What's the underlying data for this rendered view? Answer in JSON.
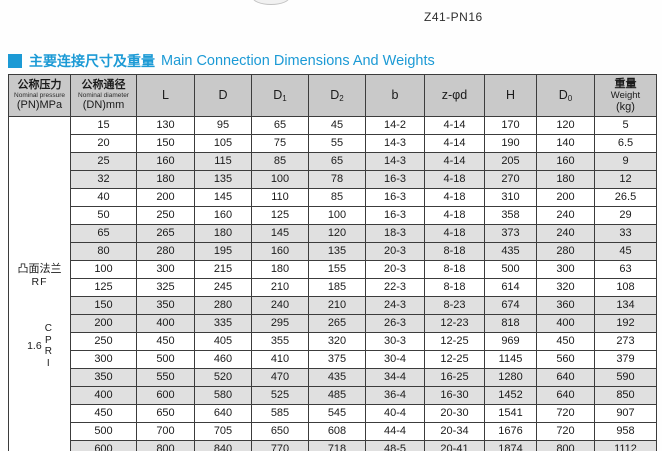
{
  "colors": {
    "accent": "#1c9ad5",
    "header_bg": "#c9c9c9",
    "stripe": "#e0e0e0",
    "border": "#3c3c3c"
  },
  "header": {
    "model": "Z41-PN16"
  },
  "section": {
    "title_zh": "主要连接尺寸及重量",
    "title_en": "Main Connection Dimensions And Weights"
  },
  "table": {
    "pressure_col": {
      "zh": "公称压力",
      "en": "Nominal pressure",
      "unit": "(PN)MPa"
    },
    "diameter_col": {
      "zh": "公称通径",
      "en": "Nominal diameter",
      "unit": "(DN)mm"
    },
    "dim_columns": [
      {
        "label": "L",
        "sub": ""
      },
      {
        "label": "D",
        "sub": ""
      },
      {
        "label": "D",
        "sub": "1"
      },
      {
        "label": "D",
        "sub": "2"
      },
      {
        "label": "b",
        "sub": ""
      },
      {
        "label": "z-φd",
        "sub": ""
      },
      {
        "label": "H",
        "sub": ""
      },
      {
        "label": "D",
        "sub": "0"
      }
    ],
    "weight_col": {
      "zh": "重量",
      "en": "Weight",
      "unit": "(kg)"
    },
    "pressure_cell": {
      "flange_zh": "凸面法兰",
      "flange_code": "RF",
      "pressure_value": "1.6",
      "vertical_letters": [
        "C",
        "P",
        "R",
        "I"
      ]
    },
    "rows": [
      {
        "dn": "15",
        "cells": [
          "130",
          "95",
          "65",
          "45",
          "14-2",
          "4-14",
          "170",
          "120",
          "5"
        ],
        "shaded": false
      },
      {
        "dn": "20",
        "cells": [
          "150",
          "105",
          "75",
          "55",
          "14-3",
          "4-14",
          "190",
          "140",
          "6.5"
        ],
        "shaded": false
      },
      {
        "dn": "25",
        "cells": [
          "160",
          "115",
          "85",
          "65",
          "14-3",
          "4-14",
          "205",
          "160",
          "9"
        ],
        "shaded": true
      },
      {
        "dn": "32",
        "cells": [
          "180",
          "135",
          "100",
          "78",
          "16-3",
          "4-18",
          "270",
          "180",
          "12"
        ],
        "shaded": true
      },
      {
        "dn": "40",
        "cells": [
          "200",
          "145",
          "110",
          "85",
          "16-3",
          "4-18",
          "310",
          "200",
          "26.5"
        ],
        "shaded": false
      },
      {
        "dn": "50",
        "cells": [
          "250",
          "160",
          "125",
          "100",
          "16-3",
          "4-18",
          "358",
          "240",
          "29"
        ],
        "shaded": false
      },
      {
        "dn": "65",
        "cells": [
          "265",
          "180",
          "145",
          "120",
          "18-3",
          "4-18",
          "373",
          "240",
          "33"
        ],
        "shaded": true
      },
      {
        "dn": "80",
        "cells": [
          "280",
          "195",
          "160",
          "135",
          "20-3",
          "8-18",
          "435",
          "280",
          "45"
        ],
        "shaded": true
      },
      {
        "dn": "100",
        "cells": [
          "300",
          "215",
          "180",
          "155",
          "20-3",
          "8-18",
          "500",
          "300",
          "63"
        ],
        "shaded": false
      },
      {
        "dn": "125",
        "cells": [
          "325",
          "245",
          "210",
          "185",
          "22-3",
          "8-18",
          "614",
          "320",
          "108"
        ],
        "shaded": false
      },
      {
        "dn": "150",
        "cells": [
          "350",
          "280",
          "240",
          "210",
          "24-3",
          "8-23",
          "674",
          "360",
          "134"
        ],
        "shaded": true
      },
      {
        "dn": "200",
        "cells": [
          "400",
          "335",
          "295",
          "265",
          "26-3",
          "12-23",
          "818",
          "400",
          "192"
        ],
        "shaded": true
      },
      {
        "dn": "250",
        "cells": [
          "450",
          "405",
          "355",
          "320",
          "30-3",
          "12-25",
          "969",
          "450",
          "273"
        ],
        "shaded": false
      },
      {
        "dn": "300",
        "cells": [
          "500",
          "460",
          "410",
          "375",
          "30-4",
          "12-25",
          "1145",
          "560",
          "379"
        ],
        "shaded": false
      },
      {
        "dn": "350",
        "cells": [
          "550",
          "520",
          "470",
          "435",
          "34-4",
          "16-25",
          "1280",
          "640",
          "590"
        ],
        "shaded": true
      },
      {
        "dn": "400",
        "cells": [
          "600",
          "580",
          "525",
          "485",
          "36-4",
          "16-30",
          "1452",
          "640",
          "850"
        ],
        "shaded": true
      },
      {
        "dn": "450",
        "cells": [
          "650",
          "640",
          "585",
          "545",
          "40-4",
          "20-30",
          "1541",
          "720",
          "907"
        ],
        "shaded": false
      },
      {
        "dn": "500",
        "cells": [
          "700",
          "705",
          "650",
          "608",
          "44-4",
          "20-34",
          "1676",
          "720",
          "958"
        ],
        "shaded": false
      },
      {
        "dn": "600",
        "cells": [
          "800",
          "840",
          "770",
          "718",
          "48-5",
          "20-41",
          "1874",
          "800",
          "1112"
        ],
        "shaded": true
      }
    ]
  }
}
